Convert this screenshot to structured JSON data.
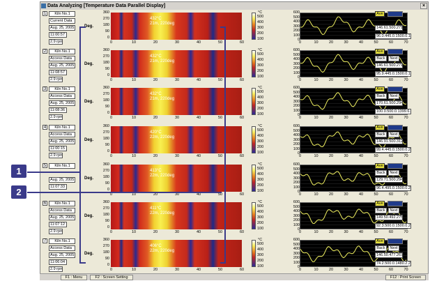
{
  "window": {
    "title": "Data Analyzing  [Temperature Data Parallel Display]",
    "close": "×"
  },
  "callouts": [
    "1",
    "2"
  ],
  "heatmap": {
    "y_label": "Deg.",
    "y_ticks": [
      "360",
      "270",
      "180",
      "90",
      "0"
    ],
    "x_ticks": [
      "0",
      "10",
      "20",
      "30",
      "40",
      "50",
      "60"
    ]
  },
  "colorbar": {
    "unit": "°C",
    "ticks": [
      "500",
      "400",
      "300",
      "200",
      "100"
    ]
  },
  "profile": {
    "y_ticks": [
      "600",
      "500",
      "400",
      "300",
      "200",
      "100",
      "0"
    ],
    "x_ticks": [
      "0",
      "10",
      "20",
      "30",
      "40",
      "50",
      "60",
      "70"
    ],
    "x_unit": "m"
  },
  "buttons": {
    "ave": "Ave",
    "back": "Back",
    "next": "Next"
  },
  "rows": [
    {
      "num": "1",
      "kiln": "Kiln No.1",
      "mode": "Current Data",
      "date": "Aug. 25, 2005",
      "time": "11:00:57",
      "rpm": "2.9 rpm",
      "temp": "432°C",
      "pos": "21m, 220deg",
      "vals1": "146.61.500.271",
      "vals2": "96.0.445.0.1500.0.196.3",
      "has_back": false
    },
    {
      "num": "2",
      "kiln": "Kiln No.1",
      "mode": "Access Data",
      "date": "Aug. 25, 2005",
      "time": "11:08:57",
      "rpm": "2.9 rpm",
      "temp": "432°C",
      "pos": "21m, 220deg",
      "vals1": "146.61.500.271",
      "vals2": "95.9.445.0.1500.0.196.3",
      "has_back": true
    },
    {
      "num": "3",
      "kiln": "Kiln No.1",
      "mode": "Access Data",
      "date": "Aug. 25, 2005",
      "time": "11:08:36",
      "rpm": "2.9 rpm",
      "temp": "432°C",
      "pos": "21m, 220deg",
      "vals1": "170.61.500.294",
      "vals2": "100.0.500.0.1399.6.209.9",
      "has_back": true
    },
    {
      "num": "4",
      "kiln": "Kiln No.1",
      "mode": "Access Data",
      "date": "Aug. 25, 2005",
      "time": "11:00:15",
      "rpm": "2.9 rpm",
      "temp": "420°C",
      "pos": "22m, 220deg",
      "vals1": "146.91.500.312",
      "vals2": "99.4.445.0.1500.0.219.6",
      "has_back": true
    },
    {
      "num": "5",
      "kiln": "Kiln No.1",
      "mode": "",
      "date": "Aug. 25, 2005",
      "time": "11:07:33",
      "rpm": "",
      "temp": "413°C",
      "pos": "22m, 220deg",
      "vals1": "129.71.500.294",
      "vals2": "96.4.495.0.1500.0.225.0",
      "has_back": true
    },
    {
      "num": "6",
      "kiln": "Kiln No.1",
      "mode": "Access Data",
      "date": "Aug. 25, 2005",
      "time": "11:07:12",
      "rpm": "2.9 rpm",
      "temp": "411°C",
      "pos": "22m, 220deg",
      "vals1": "149.50.492.275",
      "vals2": "92.3.500.0.1500.0.221.8",
      "has_back": true
    },
    {
      "num": "7",
      "kiln": "Kiln No.1",
      "mode": "Access Data",
      "date": "Aug. 25, 2005",
      "time": "11:06:04",
      "rpm": "2.9 rpm",
      "temp": "406°C",
      "pos": "22m, 220deg",
      "vals1": "146.50.477.267",
      "vals2": "74.2.500.0.1480.2.281.3",
      "has_back": true
    }
  ],
  "statusbar": {
    "f1": "F1 : Menu",
    "f2": "F2 : Screen Setting",
    "f12": "F12 : Print Screen"
  },
  "colors": {
    "accent": "#3a3a8a",
    "ave": "#e6e040",
    "profile_line": "#f0f060"
  }
}
